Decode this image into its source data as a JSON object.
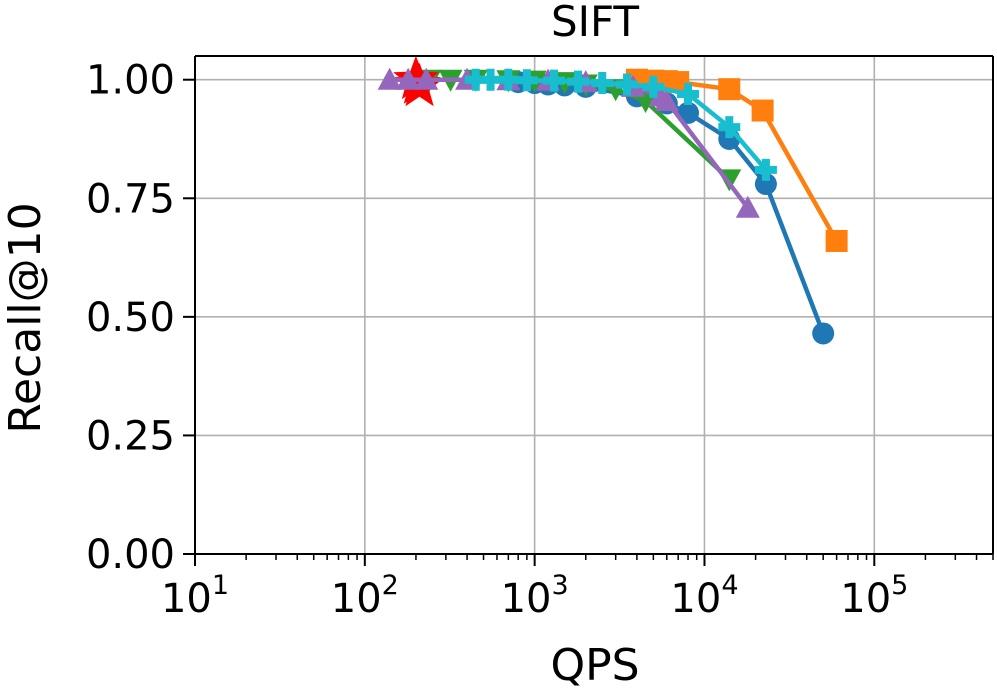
{
  "chart_data": {
    "type": "line",
    "title": "SIFT",
    "xlabel": "QPS",
    "ylabel": "Recall@10",
    "xscale": "log",
    "xlim": [
      10,
      500000
    ],
    "ylim": [
      0,
      1.05
    ],
    "grid": true,
    "x_ticks": [
      {
        "value": 10,
        "base": "10",
        "exp": "1"
      },
      {
        "value": 100,
        "base": "10",
        "exp": "2"
      },
      {
        "value": 1000,
        "base": "10",
        "exp": "3"
      },
      {
        "value": 10000,
        "base": "10",
        "exp": "4"
      },
      {
        "value": 100000,
        "base": "10",
        "exp": "5"
      }
    ],
    "y_ticks": [
      {
        "value": 0.0,
        "label": "0.00"
      },
      {
        "value": 0.25,
        "label": "0.25"
      },
      {
        "value": 0.5,
        "label": "0.50"
      },
      {
        "value": 0.75,
        "label": "0.75"
      },
      {
        "value": 1.0,
        "label": "1.00"
      }
    ],
    "series": [
      {
        "name": "series-blue-circle",
        "color": "#1f77b4",
        "marker": "circle",
        "x": [
          800,
          1000,
          1200,
          1500,
          2000,
          4000,
          6000,
          8000,
          14000,
          23000,
          50000
        ],
        "y": [
          0.995,
          0.993,
          0.99,
          0.988,
          0.985,
          0.965,
          0.95,
          0.93,
          0.875,
          0.78,
          0.465
        ]
      },
      {
        "name": "series-orange-square",
        "color": "#ff7f0e",
        "marker": "square",
        "x": [
          4000,
          5000,
          6000,
          7000,
          14000,
          22000,
          60000
        ],
        "y": [
          1.0,
          0.998,
          0.997,
          0.995,
          0.98,
          0.935,
          0.66
        ]
      },
      {
        "name": "series-green-triangle-down",
        "color": "#2ca02c",
        "marker": "triangle-down",
        "x": [
          240,
          320,
          450,
          700,
          1000,
          1500,
          2000,
          3000,
          4500,
          14000
        ],
        "y": [
          1.0,
          1.0,
          1.0,
          0.999,
          0.998,
          0.995,
          0.99,
          0.98,
          0.955,
          0.79
        ]
      },
      {
        "name": "series-red-star",
        "color": "#ff0000",
        "marker": "star",
        "x": [
          200,
          205,
          210
        ],
        "y": [
          1.0,
          0.99,
          0.985
        ]
      },
      {
        "name": "series-purple-triangle-up",
        "color": "#9467bd",
        "marker": "triangle-up",
        "x": [
          140,
          180,
          230,
          400,
          700,
          1200,
          2000,
          3800,
          5500,
          6000,
          18000
        ],
        "y": [
          1.0,
          1.0,
          1.0,
          1.0,
          0.999,
          0.998,
          0.995,
          0.985,
          0.965,
          0.955,
          0.73
        ]
      },
      {
        "name": "series-cyan-plus",
        "color": "#17becf",
        "marker": "plus",
        "x": [
          450,
          550,
          700,
          900,
          1300,
          1800,
          2500,
          3500,
          5000,
          8000,
          14000,
          23000
        ],
        "y": [
          1.0,
          1.0,
          1.0,
          0.999,
          0.998,
          0.996,
          0.993,
          0.99,
          0.985,
          0.97,
          0.9,
          0.81
        ]
      }
    ]
  }
}
